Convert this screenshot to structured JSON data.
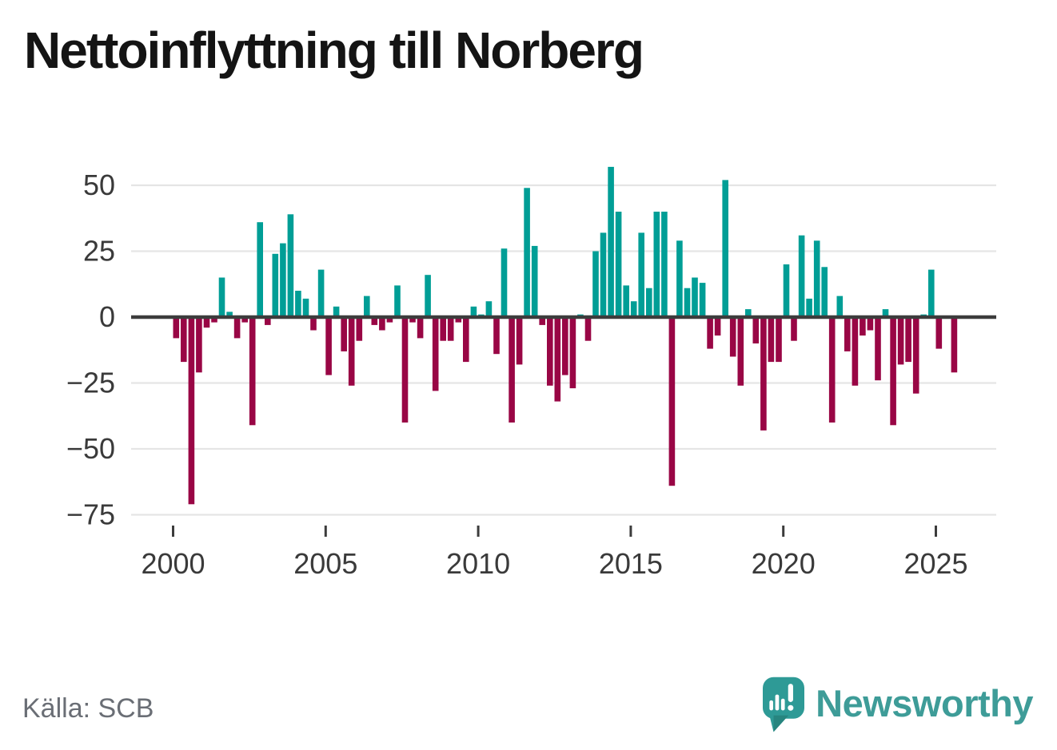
{
  "title": "Nettoinflyttning till Norberg",
  "source": "Källa: SCB",
  "brand": {
    "name": "Newsworthy"
  },
  "colors": {
    "positive": "#009e96",
    "negative": "#990645",
    "grid": "#e5e5e5",
    "zero_line": "#3c3c3c",
    "axis_text": "#3a3a3a",
    "title_text": "#141414",
    "source_text": "#6a6e75",
    "brand_teal": "#3e9c98",
    "brand_icon": "#2e9a96",
    "brand_icon_dark": "#27857f"
  },
  "chart_data": {
    "type": "bar",
    "title": "Nettoinflyttning till Norberg",
    "frequency": "quarterly",
    "start": "2000-Q1",
    "end": "2025-Q3",
    "grid": true,
    "legend": false,
    "ylim": [
      -79,
      63
    ],
    "x_tick_labels": [
      "2000",
      "2005",
      "2010",
      "2015",
      "2020",
      "2025"
    ],
    "y_ticks": [
      {
        "value": 50,
        "label": "50"
      },
      {
        "value": 25,
        "label": "25"
      },
      {
        "value": 0,
        "label": "0"
      },
      {
        "value": -25,
        "label": "−25"
      },
      {
        "value": -50,
        "label": "−50"
      },
      {
        "value": -75,
        "label": "−75"
      }
    ],
    "years": [
      {
        "year": 2000,
        "quarters": [
          -8,
          -17,
          -71,
          -21
        ]
      },
      {
        "year": 2001,
        "quarters": [
          -4,
          -2,
          15,
          2
        ]
      },
      {
        "year": 2002,
        "quarters": [
          -8,
          -2,
          -41,
          36
        ]
      },
      {
        "year": 2003,
        "quarters": [
          -3,
          24,
          28,
          39
        ]
      },
      {
        "year": 2004,
        "quarters": [
          10,
          7,
          -5,
          18
        ]
      },
      {
        "year": 2005,
        "quarters": [
          -22,
          4,
          -13,
          -26
        ]
      },
      {
        "year": 2006,
        "quarters": [
          -9,
          8,
          -3,
          -5
        ]
      },
      {
        "year": 2007,
        "quarters": [
          -2,
          12,
          -40,
          -2
        ]
      },
      {
        "year": 2008,
        "quarters": [
          -8,
          16,
          -28,
          -9
        ]
      },
      {
        "year": 2009,
        "quarters": [
          -9,
          -2,
          -17,
          4
        ]
      },
      {
        "year": 2010,
        "quarters": [
          1,
          6,
          -14,
          26
        ]
      },
      {
        "year": 2011,
        "quarters": [
          -40,
          -18,
          49,
          27
        ]
      },
      {
        "year": 2012,
        "quarters": [
          -3,
          -26,
          -32,
          -22
        ]
      },
      {
        "year": 2013,
        "quarters": [
          -27,
          1,
          -9,
          25
        ]
      },
      {
        "year": 2014,
        "quarters": [
          32,
          57,
          40,
          12
        ]
      },
      {
        "year": 2015,
        "quarters": [
          6,
          32,
          11,
          40
        ]
      },
      {
        "year": 2016,
        "quarters": [
          40,
          -64,
          29,
          11
        ]
      },
      {
        "year": 2017,
        "quarters": [
          15,
          13,
          -12,
          -7
        ]
      },
      {
        "year": 2018,
        "quarters": [
          52,
          -15,
          -26,
          3
        ]
      },
      {
        "year": 2019,
        "quarters": [
          -10,
          -43,
          -17,
          -17
        ]
      },
      {
        "year": 2020,
        "quarters": [
          20,
          -9,
          31,
          7
        ]
      },
      {
        "year": 2021,
        "quarters": [
          29,
          19,
          -40,
          8
        ]
      },
      {
        "year": 2022,
        "quarters": [
          -13,
          -26,
          -7,
          -5
        ]
      },
      {
        "year": 2023,
        "quarters": [
          -24,
          3,
          -41,
          -18
        ]
      },
      {
        "year": 2024,
        "quarters": [
          -17,
          -29,
          1,
          18
        ]
      },
      {
        "year": 2025,
        "quarters": [
          -12,
          0,
          -21
        ]
      }
    ]
  }
}
